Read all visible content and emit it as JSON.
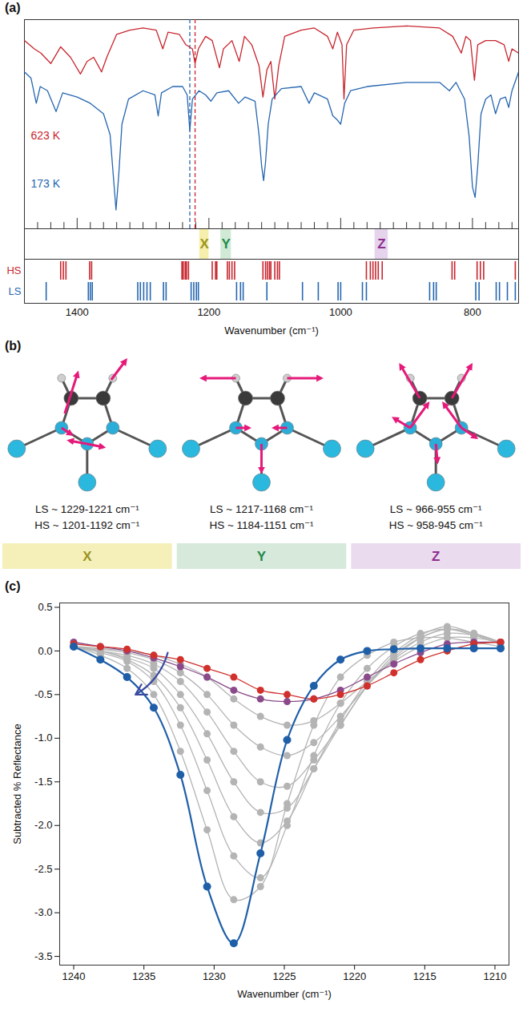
{
  "chart_data": [
    {
      "panel_label": "(a)",
      "type": "line",
      "x_label": "Wavenumber (cm⁻¹)",
      "xlim": [
        1480,
        730
      ],
      "xticks": [
        1400,
        1200,
        1000,
        800
      ],
      "xticks_minor": [
        1480,
        1460,
        1440,
        1420,
        1400,
        1380,
        1360,
        1340,
        1320,
        1300,
        1280,
        1260,
        1240,
        1220,
        1200,
        1180,
        1160,
        1140,
        1120,
        1100,
        1080,
        1060,
        1040,
        1020,
        1000,
        980,
        960,
        940,
        920,
        900,
        880,
        860,
        840,
        820,
        800,
        780,
        760,
        740
      ],
      "ylim": [
        0,
        100
      ],
      "tick_labels": "x",
      "series": [
        {
          "name": "623 K",
          "color": "#c8262f",
          "x": [
            1480,
            1465,
            1455,
            1440,
            1425,
            1410,
            1395,
            1385,
            1375,
            1368,
            1363,
            1355,
            1340,
            1320,
            1300,
            1280,
            1270,
            1262,
            1245,
            1235,
            1225,
            1221,
            1216,
            1205,
            1195,
            1184,
            1178,
            1165,
            1154,
            1146,
            1135,
            1124,
            1118,
            1112,
            1106,
            1100,
            1094,
            1085,
            1060,
            1040,
            1020,
            1012,
            1005,
            998,
            995,
            991,
            980,
            950,
            900,
            850,
            830,
            817,
            810,
            803,
            797,
            792,
            780,
            765,
            752,
            745,
            740,
            730
          ],
          "values": [
            90,
            86,
            84,
            79,
            87,
            82,
            74,
            80,
            82,
            78,
            75,
            82,
            93,
            95,
            96,
            95,
            86,
            94,
            93,
            88,
            86,
            79,
            86,
            92,
            90,
            77,
            86,
            90,
            80,
            92,
            88,
            78,
            63,
            76,
            80,
            62,
            78,
            92,
            95,
            96,
            92,
            86,
            94,
            88,
            62,
            88,
            95,
            96,
            97,
            96,
            92,
            84,
            92,
            90,
            71,
            88,
            90,
            90,
            88,
            80,
            86,
            84
          ]
        },
        {
          "name": "173 K",
          "color": "#2566b0",
          "x": [
            1480,
            1470,
            1462,
            1456,
            1445,
            1432,
            1422,
            1400,
            1380,
            1360,
            1350,
            1345,
            1341,
            1337,
            1332,
            1322,
            1300,
            1282,
            1277,
            1272,
            1255,
            1240,
            1233,
            1229,
            1225,
            1215,
            1205,
            1197,
            1188,
            1170,
            1155,
            1145,
            1130,
            1124,
            1120,
            1117,
            1114,
            1110,
            1104,
            1090,
            1060,
            1048,
            1040,
            1020,
            1012,
            1005,
            1000,
            994,
            985,
            960,
            900,
            850,
            835,
            825,
            812,
            805,
            800,
            796,
            792,
            787,
            780,
            772,
            765,
            758,
            750,
            745,
            740,
            730
          ],
          "values": [
            75,
            72,
            60,
            68,
            66,
            56,
            65,
            63,
            60,
            55,
            45,
            25,
            9,
            25,
            50,
            62,
            66,
            64,
            54,
            65,
            68,
            68,
            64,
            47,
            62,
            66,
            64,
            61,
            65,
            66,
            60,
            63,
            61,
            45,
            30,
            23,
            32,
            50,
            62,
            67,
            68,
            60,
            65,
            62,
            54,
            52,
            50,
            60,
            66,
            68,
            70,
            70,
            66,
            70,
            62,
            44,
            20,
            15,
            30,
            55,
            62,
            64,
            55,
            62,
            63,
            58,
            66,
            75
          ]
        }
      ],
      "dashed_lines": [
        {
          "x": 1229,
          "color": "#2566b0"
        },
        {
          "x": 1221,
          "color": "#c8262f"
        }
      ],
      "bands": [
        {
          "label": "X",
          "x1": 1214,
          "x2": 1200,
          "color": "#f3ec9c",
          "text_color": "#9c9420"
        },
        {
          "label": "Y",
          "x1": 1182,
          "x2": 1166,
          "color": "#c8e6cf",
          "text_color": "#1e8a4a"
        },
        {
          "label": "Z",
          "x1": 948,
          "x2": 928,
          "color": "#e2cdea",
          "text_color": "#8e2f8f"
        }
      ],
      "sticks": [
        {
          "name": "HS",
          "color": "#c8262f",
          "x": [
            1425,
            1421,
            1417,
            1381,
            1378,
            1241,
            1239,
            1236,
            1234,
            1231,
            1195,
            1190,
            1188,
            1172,
            1169,
            1165,
            1161,
            1118,
            1114,
            1111,
            1108,
            1106,
            1100,
            1096,
            1093,
            961,
            955,
            951,
            947,
            943,
            937,
            831,
            827,
            793,
            788,
            783,
            735
          ]
        },
        {
          "name": "LS",
          "color": "#2566b0",
          "x": [
            1447,
            1383,
            1380,
            1377,
            1308,
            1304,
            1299,
            1294,
            1289,
            1269,
            1265,
            1227,
            1223,
            1219,
            1216,
            1158,
            1152,
            1148,
            1112,
            1058,
            1034,
            1004,
            1000,
            967,
            961,
            865,
            859,
            855,
            795,
            790,
            764,
            759,
            747,
            735
          ]
        }
      ]
    },
    {
      "panel_label": "(c)",
      "type": "line",
      "marker": "circle",
      "x_label": "Wavenumber (cm⁻¹)",
      "y_label": "Subtracted % Reflectance",
      "xlim": [
        1241,
        1209
      ],
      "xticks": [
        1240,
        1235,
        1230,
        1225,
        1220,
        1215,
        1210
      ],
      "ylim": [
        -3.6,
        0.55
      ],
      "yticks": [
        0.5,
        {
          "value": 0,
          "label": "0.0"
        },
        -0.5,
        {
          "value": -1,
          "label": "-1.0"
        },
        -1.5,
        {
          "value": -2,
          "label": "-2.0"
        },
        -2.5,
        {
          "value": -3,
          "label": "-3.0"
        },
        -3.5
      ],
      "x": [
        1240,
        1238.1,
        1236.2,
        1234.3,
        1232.4,
        1230.5,
        1228.6,
        1226.7,
        1224.8,
        1222.9,
        1221,
        1219.1,
        1217.2,
        1215.3,
        1213.4,
        1211.5,
        1209.6
      ],
      "series": [
        {
          "color": "#b4b4b4",
          "values": [
            0.05,
            0.03,
            0.0,
            -0.05,
            -0.15,
            -0.3,
            -0.55,
            -0.75,
            -0.85,
            -0.8,
            -0.6,
            -0.35,
            -0.12,
            0.05,
            0.15,
            0.15,
            0.1
          ]
        },
        {
          "color": "#b4b4b4",
          "values": [
            0.05,
            0.02,
            -0.02,
            -0.1,
            -0.25,
            -0.5,
            -0.85,
            -1.1,
            -1.2,
            -1.05,
            -0.75,
            -0.4,
            -0.1,
            0.1,
            0.2,
            0.18,
            0.1
          ]
        },
        {
          "color": "#b4b4b4",
          "values": [
            0.05,
            0.0,
            -0.05,
            -0.15,
            -0.35,
            -0.7,
            -1.15,
            -1.5,
            -1.55,
            -1.25,
            -0.85,
            -0.4,
            -0.08,
            0.15,
            0.25,
            0.2,
            0.1
          ]
        },
        {
          "color": "#b4b4b4",
          "values": [
            0.05,
            0.0,
            -0.08,
            -0.2,
            -0.5,
            -0.95,
            -1.5,
            -1.85,
            -1.8,
            -1.35,
            -0.85,
            -0.4,
            -0.05,
            0.15,
            0.25,
            0.2,
            0.1
          ]
        },
        {
          "color": "#b4b4b4",
          "values": [
            0.05,
            0.0,
            -0.1,
            -0.28,
            -0.65,
            -1.25,
            -1.9,
            -2.2,
            -1.95,
            -1.35,
            -0.8,
            -0.35,
            -0.02,
            0.18,
            0.28,
            0.2,
            0.1
          ]
        },
        {
          "color": "#b4b4b4",
          "values": [
            0.05,
            -0.02,
            -0.12,
            -0.35,
            -0.85,
            -1.6,
            -2.35,
            -2.6,
            -2.0,
            -1.2,
            -0.6,
            -0.2,
            0.05,
            0.2,
            0.25,
            0.18,
            0.08
          ]
        },
        {
          "color": "#b4b4b4",
          "values": [
            0.05,
            -0.05,
            -0.2,
            -0.5,
            -1.15,
            -2.05,
            -2.85,
            -2.7,
            -1.75,
            -0.85,
            -0.3,
            -0.05,
            0.1,
            0.15,
            0.15,
            0.1,
            0.05
          ]
        },
        {
          "color": "#8a4a8a",
          "values": [
            0.1,
            0.05,
            0.0,
            -0.08,
            -0.18,
            -0.3,
            -0.45,
            -0.55,
            -0.58,
            -0.55,
            -0.45,
            -0.3,
            -0.15,
            -0.02,
            0.08,
            0.1,
            0.1
          ]
        },
        {
          "color": "#d0312d",
          "values": [
            0.08,
            0.05,
            0.02,
            -0.05,
            -0.1,
            -0.2,
            -0.3,
            -0.45,
            -0.5,
            -0.55,
            -0.5,
            -0.4,
            -0.25,
            -0.1,
            0.0,
            0.08,
            0.1
          ]
        },
        {
          "color": "#1f5fa8",
          "values": [
            0.05,
            -0.1,
            -0.3,
            -0.65,
            -1.42,
            -2.7,
            -3.35,
            -2.32,
            -1.02,
            -0.4,
            -0.1,
            0.0,
            0.02,
            0.03,
            0.03,
            0.03,
            0.03
          ]
        }
      ],
      "arrow": {
        "x1": 1233.3,
        "y1": -0.02,
        "x2": 1235.6,
        "y2": -0.5,
        "color": "#3a4aa0"
      }
    }
  ],
  "diagram": {
    "panel_label": "(b)",
    "modes": [
      {
        "label": "X",
        "ls": "LS ~ 1229-1221 cm⁻¹",
        "hs": "HS ~ 1201-1192 cm⁻¹",
        "color": "#9c9420",
        "box_color": "#f5f0b9"
      },
      {
        "label": "Y",
        "ls": "LS ~ 1217-1168 cm⁻¹",
        "hs": "HS ~ 1184-1151 cm⁻¹",
        "color": "#1e8a4a",
        "box_color": "#d7e9da"
      },
      {
        "label": "Z",
        "ls": "LS ~ 966-955 cm⁻¹",
        "hs": "HS ~ 958-945 cm⁻¹",
        "color": "#8e2f8f",
        "box_color": "#eadbee"
      }
    ]
  }
}
